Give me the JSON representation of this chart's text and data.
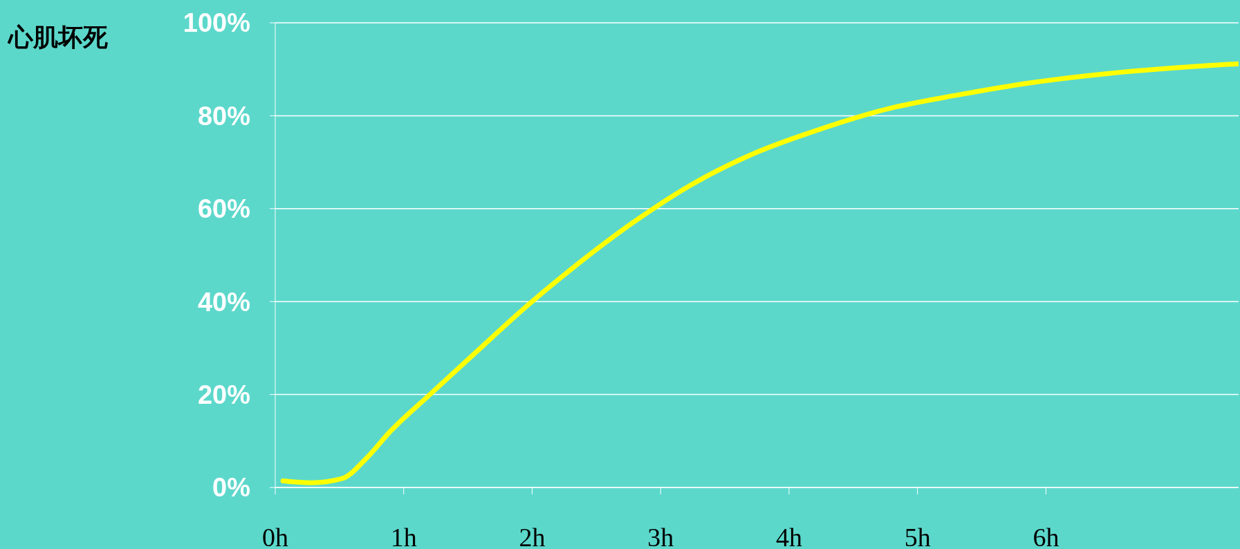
{
  "chart_data": {
    "type": "line",
    "ylabel": "心肌坏死",
    "x": [
      0.06,
      0.28,
      0.52,
      0.71,
      0.89,
      1.2,
      1.57,
      1.94,
      2.31,
      2.8,
      3.23,
      3.72,
      4.22,
      4.77,
      5.32,
      5.88,
      6.49,
      7.5
    ],
    "series": [
      {
        "color": "#ffff00",
        "values": [
          1.4,
          1,
          1.9,
          6.3,
          11.9,
          19.9,
          29.3,
          38.6,
          47.1,
          57.3,
          65,
          71.8,
          76.9,
          81.5,
          84.5,
          87.1,
          89.1,
          91.2
        ]
      }
    ],
    "xlim": [
      0,
      7.5
    ],
    "xticks": [
      {
        "value": 0,
        "label": "0h"
      },
      {
        "value": 1,
        "label": "1h"
      },
      {
        "value": 2,
        "label": "2h"
      },
      {
        "value": 3,
        "label": "3h"
      },
      {
        "value": 4,
        "label": "4h"
      },
      {
        "value": 5,
        "label": "5h"
      },
      {
        "value": 6,
        "label": "6h"
      }
    ],
    "ylim": [
      0,
      100
    ],
    "yticks": [
      {
        "value": 0,
        "label": "0%"
      },
      {
        "value": 20,
        "label": "20%"
      },
      {
        "value": 40,
        "label": "40%"
      },
      {
        "value": 60,
        "label": "60%"
      },
      {
        "value": 80,
        "label": "80%"
      },
      {
        "value": 100,
        "label": "100%"
      }
    ],
    "grid": "y",
    "marker": "none",
    "line_style": "solid",
    "legend": false
  }
}
